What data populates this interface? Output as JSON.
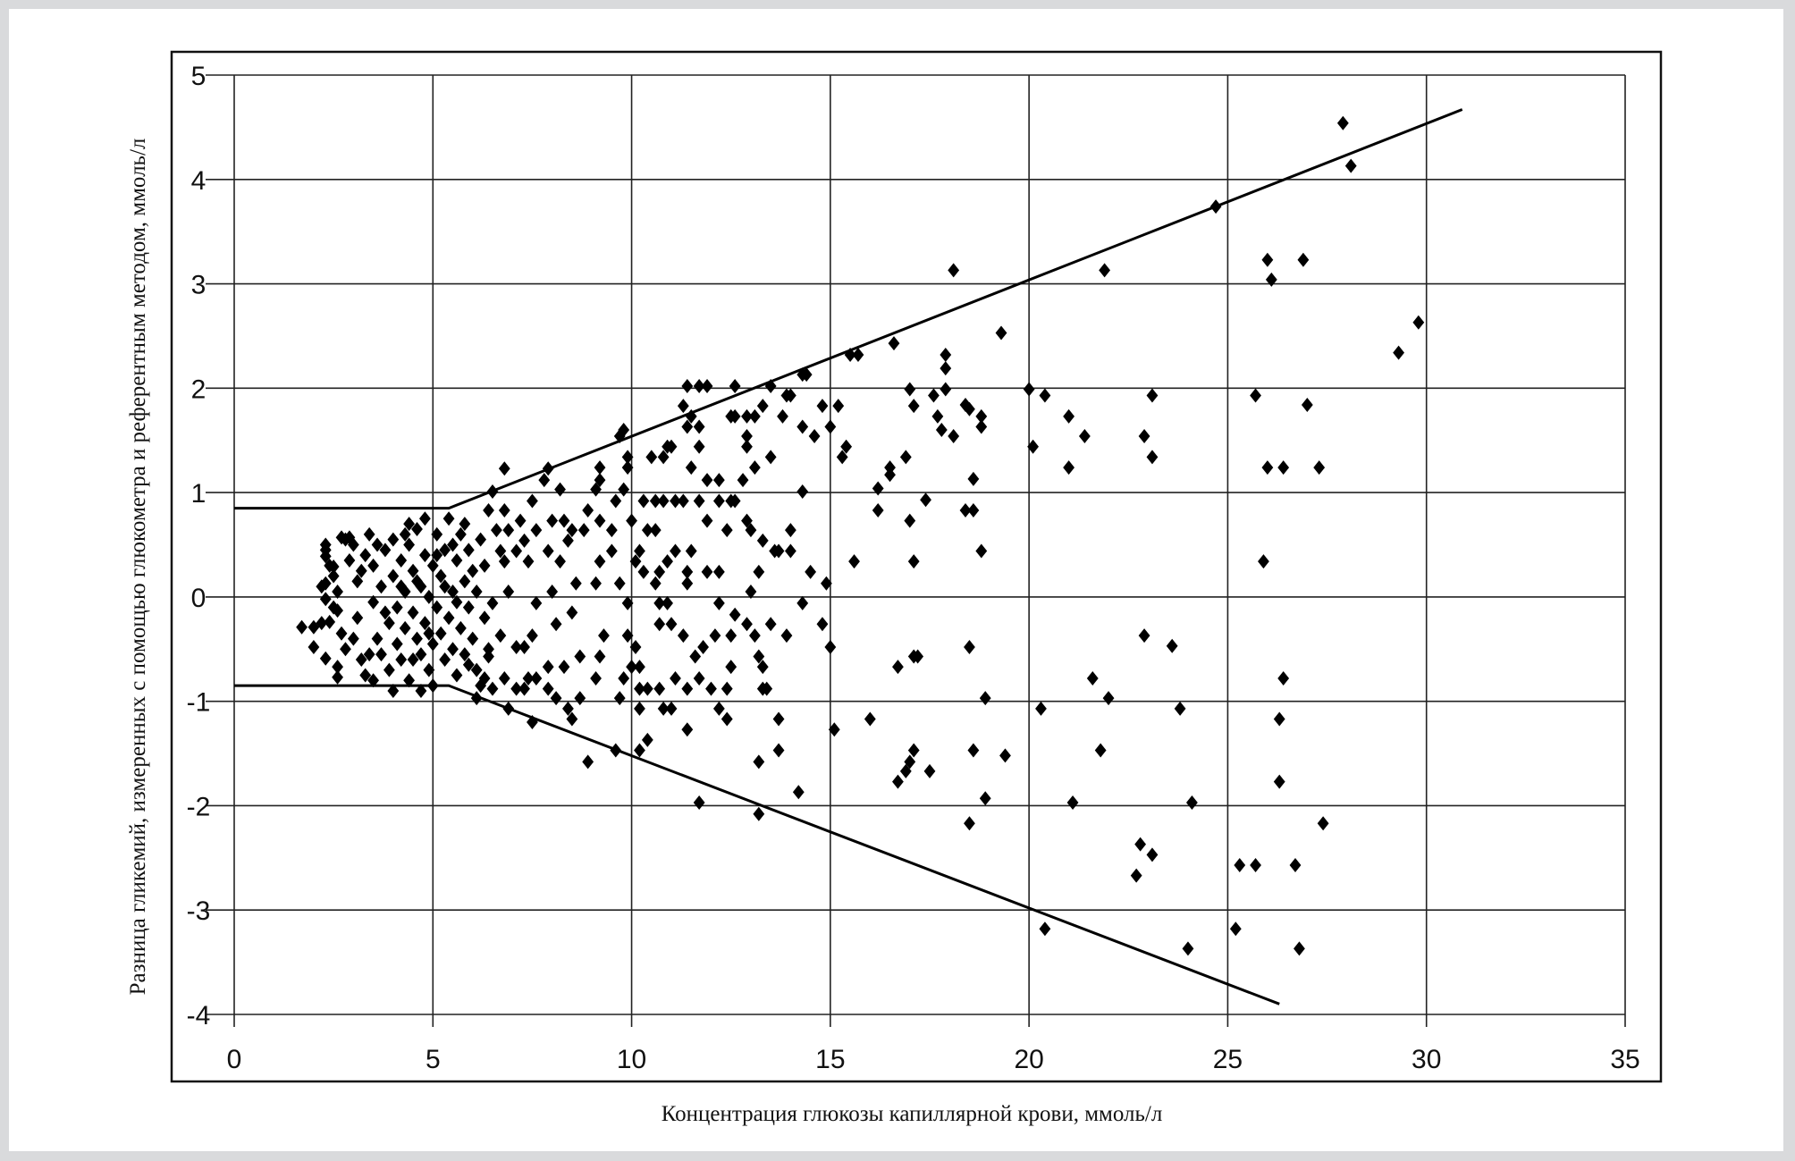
{
  "chart_data": {
    "type": "scatter",
    "title": "",
    "xlabel": "Концентрация глюкозы капиллярной крови, ммоль/л",
    "ylabel": "Разница гликемий, измеренных с помощью глюкометра и референтным методом, ммоль/л",
    "xlim": [
      0,
      35
    ],
    "ylim": [
      -4,
      5
    ],
    "xticks": [
      "0",
      "5",
      "10",
      "15",
      "20",
      "25",
      "30",
      "35"
    ],
    "yticks": [
      "5",
      "4",
      "3",
      "2",
      "1",
      "0",
      "-1",
      "-2",
      "-3",
      "-4"
    ],
    "grid": true,
    "marker": "diamond",
    "marker_color": "#000000",
    "boundary_lines": [
      {
        "points": [
          [
            0,
            0.85
          ],
          [
            5.4,
            0.85
          ],
          [
            30.9,
            4.67
          ]
        ]
      },
      {
        "points": [
          [
            0,
            -0.85
          ],
          [
            5.4,
            -0.85
          ],
          [
            26.3,
            -3.9
          ]
        ]
      }
    ],
    "points": [
      [
        27.9,
        4.54
      ],
      [
        28.1,
        4.13
      ],
      [
        24.7,
        3.74
      ],
      [
        18.1,
        3.13
      ],
      [
        21.9,
        3.13
      ],
      [
        26.0,
        3.23
      ],
      [
        26.9,
        3.23
      ],
      [
        26.1,
        3.04
      ],
      [
        29.8,
        2.63
      ],
      [
        29.3,
        2.34
      ],
      [
        19.3,
        2.53
      ],
      [
        16.6,
        2.43
      ],
      [
        17.9,
        2.32
      ],
      [
        15.5,
        2.32
      ],
      [
        15.7,
        2.32
      ],
      [
        20.0,
        1.99
      ],
      [
        20.4,
        1.93
      ],
      [
        23.1,
        1.93
      ],
      [
        25.7,
        1.93
      ],
      [
        27.0,
        1.84
      ],
      [
        21.0,
        1.73
      ],
      [
        21.4,
        1.54
      ],
      [
        22.9,
        1.54
      ],
      [
        20.1,
        1.44
      ],
      [
        23.1,
        1.34
      ],
      [
        21.0,
        1.24
      ],
      [
        26.0,
        1.24
      ],
      [
        26.4,
        1.24
      ],
      [
        27.3,
        1.24
      ],
      [
        25.9,
        0.34
      ],
      [
        22.9,
        -0.37
      ],
      [
        23.6,
        -0.47
      ],
      [
        21.6,
        -0.78
      ],
      [
        22.0,
        -0.97
      ],
      [
        23.8,
        -1.07
      ],
      [
        26.4,
        -0.78
      ],
      [
        26.3,
        -1.17
      ],
      [
        26.3,
        -1.77
      ],
      [
        20.3,
        -1.07
      ],
      [
        21.8,
        -1.47
      ],
      [
        21.1,
        -1.97
      ],
      [
        24.1,
        -1.97
      ],
      [
        27.4,
        -2.17
      ],
      [
        22.8,
        -2.37
      ],
      [
        23.1,
        -2.47
      ],
      [
        22.7,
        -2.67
      ],
      [
        25.3,
        -2.57
      ],
      [
        25.7,
        -2.57
      ],
      [
        26.7,
        -2.57
      ],
      [
        20.4,
        -3.18
      ],
      [
        25.2,
        -3.18
      ],
      [
        26.8,
        -3.37
      ],
      [
        24.0,
        -3.37
      ],
      [
        17.9,
        2.19
      ],
      [
        17.9,
        1.99
      ],
      [
        17.0,
        1.99
      ],
      [
        17.6,
        1.93
      ],
      [
        18.4,
        1.84
      ],
      [
        18.5,
        1.8
      ],
      [
        18.8,
        1.73
      ],
      [
        17.7,
        1.73
      ],
      [
        17.8,
        1.6
      ],
      [
        18.1,
        1.54
      ],
      [
        18.8,
        1.63
      ],
      [
        17.1,
        1.83
      ],
      [
        16.9,
        1.34
      ],
      [
        16.5,
        1.24
      ],
      [
        16.5,
        1.17
      ],
      [
        18.6,
        1.13
      ],
      [
        16.2,
        1.04
      ],
      [
        16.2,
        0.83
      ],
      [
        17.4,
        0.93
      ],
      [
        18.4,
        0.83
      ],
      [
        18.6,
        0.83
      ],
      [
        17.0,
        0.73
      ],
      [
        18.8,
        0.44
      ],
      [
        17.1,
        0.34
      ],
      [
        15.6,
        0.34
      ],
      [
        18.5,
        -0.48
      ],
      [
        17.1,
        -0.57
      ],
      [
        17.2,
        -0.57
      ],
      [
        16.7,
        -0.67
      ],
      [
        18.9,
        -0.97
      ],
      [
        16.0,
        -1.17
      ],
      [
        17.1,
        -1.47
      ],
      [
        17.0,
        -1.58
      ],
      [
        16.9,
        -1.67
      ],
      [
        16.7,
        -1.77
      ],
      [
        17.5,
        -1.67
      ],
      [
        18.6,
        -1.47
      ],
      [
        19.4,
        -1.52
      ],
      [
        18.9,
        -1.93
      ],
      [
        18.5,
        -2.17
      ],
      [
        11.4,
        2.02
      ],
      [
        11.7,
        2.02
      ],
      [
        11.9,
        2.02
      ],
      [
        12.6,
        2.02
      ],
      [
        13.5,
        2.02
      ],
      [
        14.4,
        2.13
      ],
      [
        14.3,
        2.13
      ],
      [
        13.3,
        1.83
      ],
      [
        13.9,
        1.93
      ],
      [
        14.0,
        1.93
      ],
      [
        14.8,
        1.83
      ],
      [
        15.2,
        1.83
      ],
      [
        11.3,
        1.83
      ],
      [
        11.5,
        1.73
      ],
      [
        12.5,
        1.73
      ],
      [
        12.6,
        1.73
      ],
      [
        12.9,
        1.73
      ],
      [
        13.1,
        1.73
      ],
      [
        13.8,
        1.73
      ],
      [
        11.4,
        1.63
      ],
      [
        11.7,
        1.63
      ],
      [
        14.3,
        1.63
      ],
      [
        14.6,
        1.54
      ],
      [
        12.9,
        1.54
      ],
      [
        12.9,
        1.44
      ],
      [
        11.7,
        1.44
      ],
      [
        11.0,
        1.44
      ],
      [
        15.4,
        1.44
      ],
      [
        15.0,
        1.63
      ],
      [
        15.3,
        1.34
      ],
      [
        10.5,
        1.34
      ],
      [
        10.8,
        1.34
      ],
      [
        10.9,
        1.44
      ],
      [
        9.7,
        1.54
      ],
      [
        9.8,
        1.6
      ],
      [
        9.9,
        1.34
      ],
      [
        9.9,
        1.24
      ],
      [
        13.1,
        1.24
      ],
      [
        13.5,
        1.34
      ],
      [
        11.9,
        1.12
      ],
      [
        12.2,
        1.12
      ],
      [
        12.8,
        1.12
      ],
      [
        11.5,
        1.24
      ],
      [
        9.2,
        1.24
      ],
      [
        9.2,
        1.12
      ],
      [
        14.3,
        1.01
      ],
      [
        10.3,
        0.92
      ],
      [
        10.6,
        0.92
      ],
      [
        10.8,
        0.92
      ],
      [
        11.1,
        0.92
      ],
      [
        11.3,
        0.92
      ],
      [
        11.7,
        0.92
      ],
      [
        12.2,
        0.92
      ],
      [
        12.5,
        0.92
      ],
      [
        12.6,
        0.92
      ],
      [
        9.8,
        1.03
      ],
      [
        9.6,
        0.92
      ],
      [
        8.9,
        0.83
      ],
      [
        9.1,
        1.03
      ],
      [
        8.8,
        0.64
      ],
      [
        9.2,
        0.73
      ],
      [
        9.5,
        0.64
      ],
      [
        10.0,
        0.73
      ],
      [
        10.4,
        0.64
      ],
      [
        10.6,
        0.64
      ],
      [
        11.9,
        0.73
      ],
      [
        12.4,
        0.64
      ],
      [
        12.9,
        0.73
      ],
      [
        13.0,
        0.64
      ],
      [
        14.0,
        0.64
      ],
      [
        13.3,
        0.54
      ],
      [
        14.0,
        0.44
      ],
      [
        13.7,
        0.44
      ],
      [
        13.6,
        0.44
      ],
      [
        11.5,
        0.44
      ],
      [
        11.1,
        0.44
      ],
      [
        10.2,
        0.44
      ],
      [
        9.5,
        0.44
      ],
      [
        9.2,
        0.34
      ],
      [
        10.1,
        0.34
      ],
      [
        10.9,
        0.34
      ],
      [
        10.7,
        0.24
      ],
      [
        11.4,
        0.24
      ],
      [
        11.9,
        0.24
      ],
      [
        12.2,
        0.24
      ],
      [
        13.2,
        0.24
      ],
      [
        14.5,
        0.24
      ],
      [
        14.9,
        0.13
      ],
      [
        11.4,
        0.13
      ],
      [
        10.6,
        0.13
      ],
      [
        10.3,
        0.24
      ],
      [
        9.7,
        0.13
      ],
      [
        9.1,
        0.13
      ],
      [
        13.0,
        0.05
      ],
      [
        14.3,
        -0.06
      ],
      [
        10.9,
        -0.06
      ],
      [
        10.7,
        -0.06
      ],
      [
        9.9,
        -0.06
      ],
      [
        12.2,
        -0.06
      ],
      [
        13.5,
        -0.26
      ],
      [
        14.8,
        -0.26
      ],
      [
        12.6,
        -0.17
      ],
      [
        12.9,
        -0.26
      ],
      [
        10.7,
        -0.26
      ],
      [
        11.0,
        -0.26
      ],
      [
        11.3,
        -0.37
      ],
      [
        12.1,
        -0.37
      ],
      [
        12.5,
        -0.37
      ],
      [
        13.1,
        -0.37
      ],
      [
        13.9,
        -0.37
      ],
      [
        15.0,
        -0.48
      ],
      [
        11.8,
        -0.48
      ],
      [
        11.6,
        -0.57
      ],
      [
        9.9,
        -0.37
      ],
      [
        10.1,
        -0.48
      ],
      [
        9.3,
        -0.37
      ],
      [
        9.2,
        -0.57
      ],
      [
        13.2,
        -0.57
      ],
      [
        13.3,
        -0.67
      ],
      [
        12.5,
        -0.67
      ],
      [
        10.0,
        -0.67
      ],
      [
        10.2,
        -0.67
      ],
      [
        11.1,
        -0.78
      ],
      [
        11.7,
        -0.78
      ],
      [
        9.8,
        -0.78
      ],
      [
        9.1,
        -0.78
      ],
      [
        10.2,
        -0.88
      ],
      [
        10.4,
        -0.88
      ],
      [
        10.7,
        -0.88
      ],
      [
        11.4,
        -0.88
      ],
      [
        12.0,
        -0.88
      ],
      [
        12.4,
        -0.88
      ],
      [
        13.3,
        -0.88
      ],
      [
        13.4,
        -0.88
      ],
      [
        9.7,
        -0.97
      ],
      [
        10.8,
        -1.07
      ],
      [
        11.0,
        -1.07
      ],
      [
        10.2,
        -1.07
      ],
      [
        12.2,
        -1.07
      ],
      [
        12.4,
        -1.17
      ],
      [
        13.7,
        -1.17
      ],
      [
        15.1,
        -1.27
      ],
      [
        11.4,
        -1.27
      ],
      [
        10.4,
        -1.37
      ],
      [
        10.2,
        -1.47
      ],
      [
        9.6,
        -1.47
      ],
      [
        13.7,
        -1.47
      ],
      [
        13.2,
        -1.58
      ],
      [
        8.9,
        -1.58
      ],
      [
        11.7,
        -1.97
      ],
      [
        14.2,
        -1.87
      ],
      [
        13.2,
        -2.08
      ],
      [
        6.8,
        1.23
      ],
      [
        7.9,
        1.23
      ],
      [
        7.8,
        1.12
      ],
      [
        8.2,
        1.03
      ],
      [
        7.5,
        0.92
      ],
      [
        6.5,
        1.01
      ],
      [
        6.4,
        0.83
      ],
      [
        6.8,
        0.83
      ],
      [
        7.2,
        0.73
      ],
      [
        6.6,
        0.64
      ],
      [
        6.9,
        0.64
      ],
      [
        8.0,
        0.73
      ],
      [
        8.3,
        0.73
      ],
      [
        8.5,
        0.64
      ],
      [
        8.4,
        0.54
      ],
      [
        7.6,
        0.64
      ],
      [
        7.3,
        0.54
      ],
      [
        7.1,
        0.44
      ],
      [
        7.9,
        0.44
      ],
      [
        6.7,
        0.44
      ],
      [
        6.8,
        0.34
      ],
      [
        7.4,
        0.34
      ],
      [
        8.2,
        0.34
      ],
      [
        8.6,
        0.13
      ],
      [
        8.0,
        0.05
      ],
      [
        7.6,
        -0.06
      ],
      [
        6.9,
        0.05
      ],
      [
        6.5,
        -0.06
      ],
      [
        8.5,
        -0.15
      ],
      [
        8.1,
        -0.26
      ],
      [
        7.5,
        -0.37
      ],
      [
        7.1,
        -0.48
      ],
      [
        7.3,
        -0.48
      ],
      [
        6.7,
        -0.37
      ],
      [
        6.4,
        -0.57
      ],
      [
        8.7,
        -0.57
      ],
      [
        8.3,
        -0.67
      ],
      [
        7.9,
        -0.67
      ],
      [
        7.4,
        -0.78
      ],
      [
        7.6,
        -0.78
      ],
      [
        6.8,
        -0.78
      ],
      [
        6.5,
        -0.88
      ],
      [
        6.3,
        -0.78
      ],
      [
        7.1,
        -0.88
      ],
      [
        7.3,
        -0.88
      ],
      [
        7.9,
        -0.88
      ],
      [
        8.1,
        -0.97
      ],
      [
        8.4,
        -1.07
      ],
      [
        8.5,
        -1.17
      ],
      [
        6.9,
        -1.07
      ],
      [
        6.1,
        -0.97
      ],
      [
        7.5,
        -1.2
      ],
      [
        8.7,
        -0.97
      ],
      [
        1.7,
        -0.29
      ],
      [
        2.0,
        -0.29
      ],
      [
        2.0,
        -0.48
      ],
      [
        2.3,
        -0.59
      ],
      [
        2.6,
        -0.67
      ],
      [
        2.6,
        -0.77
      ],
      [
        2.3,
        0.5
      ],
      [
        2.3,
        0.39
      ],
      [
        2.5,
        0.29
      ],
      [
        2.7,
        0.57
      ],
      [
        2.9,
        0.57
      ],
      [
        2.3,
        0.13
      ],
      [
        2.3,
        -0.02
      ],
      [
        2.6,
        -0.13
      ],
      [
        2.4,
        -0.24
      ],
      [
        2.3,
        0.45
      ],
      [
        2.4,
        0.3
      ],
      [
        2.5,
        0.2
      ],
      [
        2.6,
        0.05
      ],
      [
        2.5,
        -0.1
      ],
      [
        2.7,
        -0.35
      ],
      [
        2.8,
        -0.5
      ],
      [
        2.9,
        0.35
      ],
      [
        3.0,
        0.5
      ],
      [
        3.1,
        0.15
      ],
      [
        3.1,
        -0.2
      ],
      [
        3.2,
        -0.6
      ],
      [
        3.3,
        -0.75
      ],
      [
        3.3,
        0.4
      ],
      [
        3.4,
        0.6
      ],
      [
        3.5,
        0.3
      ],
      [
        3.5,
        -0.05
      ],
      [
        3.6,
        -0.4
      ],
      [
        3.7,
        -0.55
      ],
      [
        3.7,
        0.1
      ],
      [
        3.8,
        0.45
      ],
      [
        3.9,
        -0.25
      ],
      [
        3.9,
        -0.7
      ],
      [
        4.0,
        0.2
      ],
      [
        4.0,
        0.55
      ],
      [
        4.1,
        -0.1
      ],
      [
        4.1,
        -0.45
      ],
      [
        4.2,
        0.35
      ],
      [
        4.2,
        -0.6
      ],
      [
        4.3,
        0.05
      ],
      [
        4.3,
        -0.3
      ],
      [
        4.4,
        0.5
      ],
      [
        4.4,
        -0.8
      ],
      [
        4.5,
        0.25
      ],
      [
        4.5,
        -0.15
      ],
      [
        4.6,
        -0.4
      ],
      [
        4.6,
        0.65
      ],
      [
        4.7,
        0.1
      ],
      [
        4.7,
        -0.55
      ],
      [
        4.8,
        0.4
      ],
      [
        4.8,
        -0.25
      ],
      [
        4.9,
        -0.7
      ],
      [
        4.9,
        0.0
      ],
      [
        5.0,
        0.3
      ],
      [
        5.0,
        -0.45
      ],
      [
        5.1,
        0.6
      ],
      [
        5.1,
        -0.1
      ],
      [
        5.2,
        -0.35
      ],
      [
        5.2,
        0.2
      ],
      [
        5.3,
        -0.6
      ],
      [
        5.3,
        0.45
      ],
      [
        5.4,
        0.75
      ],
      [
        5.4,
        -0.2
      ],
      [
        5.5,
        0.05
      ],
      [
        5.5,
        -0.5
      ],
      [
        5.6,
        0.35
      ],
      [
        5.6,
        -0.75
      ],
      [
        5.7,
        0.6
      ],
      [
        5.7,
        -0.3
      ],
      [
        5.8,
        0.15
      ],
      [
        5.8,
        -0.55
      ],
      [
        5.9,
        0.45
      ],
      [
        5.9,
        -0.1
      ],
      [
        6.0,
        -0.4
      ],
      [
        6.0,
        0.25
      ],
      [
        6.1,
        -0.7
      ],
      [
        6.1,
        0.05
      ],
      [
        6.2,
        0.55
      ],
      [
        6.2,
        -0.85
      ],
      [
        3.0,
        -0.4
      ],
      [
        3.2,
        0.25
      ],
      [
        3.6,
        0.5
      ],
      [
        4.0,
        -0.9
      ],
      [
        4.4,
        0.7
      ],
      [
        4.8,
        0.75
      ],
      [
        5.0,
        -0.85
      ],
      [
        5.3,
        0.1
      ],
      [
        4.5,
        -0.6
      ],
      [
        3.8,
        -0.15
      ],
      [
        4.2,
        0.1
      ],
      [
        4.6,
        0.15
      ],
      [
        5.5,
        0.5
      ],
      [
        5.8,
        0.7
      ],
      [
        6.3,
        0.3
      ],
      [
        6.4,
        -0.5
      ],
      [
        6.3,
        -0.2
      ],
      [
        2.2,
        -0.25
      ],
      [
        2.2,
        0.1
      ],
      [
        2.8,
        0.55
      ],
      [
        3.4,
        -0.55
      ],
      [
        4.9,
        -0.35
      ],
      [
        5.1,
        0.4
      ],
      [
        4.3,
        0.6
      ],
      [
        3.5,
        -0.8
      ],
      [
        4.7,
        -0.9
      ],
      [
        5.6,
        -0.05
      ],
      [
        5.9,
        -0.65
      ]
    ]
  }
}
